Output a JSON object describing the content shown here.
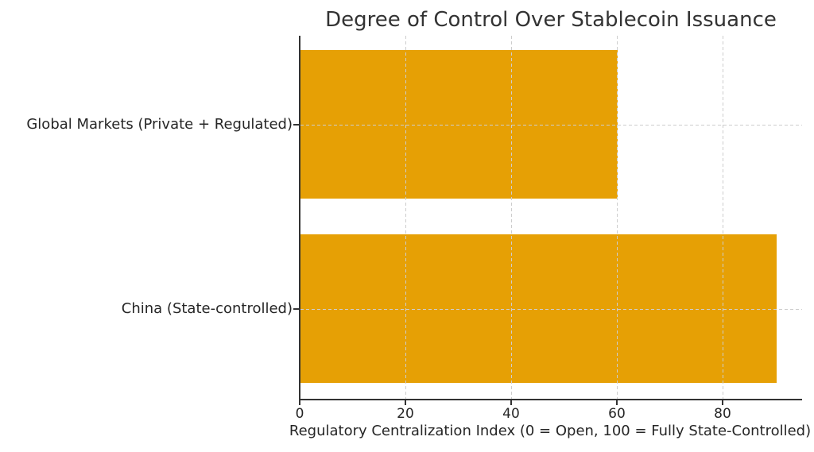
{
  "chart_data": {
    "type": "bar",
    "orientation": "horizontal",
    "title": "Degree of Control Over Stablecoin Issuance",
    "xlabel": "Regulatory Centralization Index (0 = Open, 100 = Fully State-Controlled)",
    "categories": [
      "Global Markets (Private + Regulated)",
      "China (State-controlled)"
    ],
    "values": [
      60,
      90
    ],
    "x_ticks": [
      0,
      20,
      40,
      60,
      80
    ],
    "xlim": [
      0,
      95
    ],
    "legend": "none",
    "grid": "dashed, drawn over bars, vertical at x ticks and horizontal at bar centers",
    "colors": {
      "bar": "#E6A005",
      "grid": "#cdcdcd",
      "axis": "#333333",
      "text": "#262626",
      "title": "#333333",
      "background": "#ffffff"
    }
  }
}
